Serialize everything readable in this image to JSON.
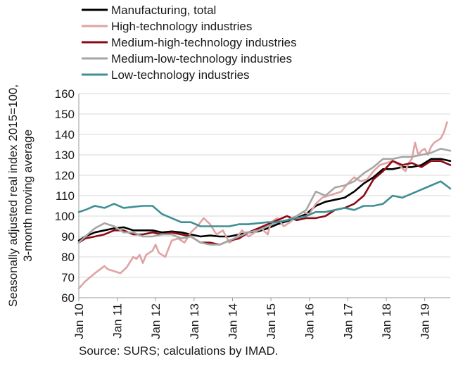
{
  "chart_data": {
    "type": "line",
    "ylabel_lines": [
      "Seasonally adjusted real index 2015=100,",
      "3-month moving average"
    ],
    "ylim": [
      60,
      160
    ],
    "yticks": [
      60,
      70,
      80,
      90,
      100,
      110,
      120,
      130,
      140,
      150,
      160
    ],
    "xlim": [
      "2010-01",
      "2019-09"
    ],
    "xticks": [
      "Jan 10",
      "Jan 11",
      "Jan 12",
      "Jan 13",
      "Jan 14",
      "Jan 15",
      "Jan 16",
      "Jan 17",
      "Jan 18",
      "Jan 19"
    ],
    "grid": "horizontal",
    "legend": "top-left",
    "series": [
      {
        "name": "Manufacturing, total",
        "color": "#000000",
        "points": [
          [
            "2010-01",
            88
          ],
          [
            "2010-03",
            90
          ],
          [
            "2010-06",
            92
          ],
          [
            "2010-09",
            93
          ],
          [
            "2010-12",
            94
          ],
          [
            "2011-03",
            94.5
          ],
          [
            "2011-06",
            93
          ],
          [
            "2011-09",
            93
          ],
          [
            "2011-12",
            93
          ],
          [
            "2012-03",
            92
          ],
          [
            "2012-06",
            92.5
          ],
          [
            "2012-09",
            92
          ],
          [
            "2012-12",
            91
          ],
          [
            "2013-03",
            90
          ],
          [
            "2013-06",
            90.5
          ],
          [
            "2013-09",
            90
          ],
          [
            "2013-12",
            90
          ],
          [
            "2014-03",
            91
          ],
          [
            "2014-06",
            92
          ],
          [
            "2014-09",
            92.5
          ],
          [
            "2014-12",
            94
          ],
          [
            "2015-03",
            96
          ],
          [
            "2015-06",
            97.5
          ],
          [
            "2015-09",
            99
          ],
          [
            "2015-12",
            101
          ],
          [
            "2016-03",
            105
          ],
          [
            "2016-06",
            107
          ],
          [
            "2016-09",
            108
          ],
          [
            "2016-12",
            109
          ],
          [
            "2017-03",
            112
          ],
          [
            "2017-06",
            116
          ],
          [
            "2017-09",
            119
          ],
          [
            "2017-12",
            123
          ],
          [
            "2018-03",
            123
          ],
          [
            "2018-06",
            124
          ],
          [
            "2018-09",
            124
          ],
          [
            "2018-12",
            125
          ],
          [
            "2019-03",
            128
          ],
          [
            "2019-06",
            128
          ],
          [
            "2019-09",
            127
          ]
        ]
      },
      {
        "name": "High-technology industries",
        "color": "#e0a3a3",
        "points": [
          [
            "2010-01",
            64.5
          ],
          [
            "2010-03",
            68
          ],
          [
            "2010-06",
            72
          ],
          [
            "2010-09",
            75.5
          ],
          [
            "2010-10",
            74
          ],
          [
            "2010-12",
            73
          ],
          [
            "2011-02",
            72
          ],
          [
            "2011-04",
            75
          ],
          [
            "2011-06",
            80
          ],
          [
            "2011-07",
            79
          ],
          [
            "2011-08",
            81
          ],
          [
            "2011-09",
            77
          ],
          [
            "2011-10",
            81
          ],
          [
            "2011-12",
            83
          ],
          [
            "2012-01",
            86
          ],
          [
            "2012-02",
            82
          ],
          [
            "2012-04",
            80
          ],
          [
            "2012-06",
            88
          ],
          [
            "2012-08",
            89
          ],
          [
            "2012-10",
            87
          ],
          [
            "2012-12",
            92
          ],
          [
            "2013-02",
            95
          ],
          [
            "2013-04",
            99
          ],
          [
            "2013-06",
            96
          ],
          [
            "2013-08",
            91
          ],
          [
            "2013-10",
            93
          ],
          [
            "2013-12",
            87
          ],
          [
            "2014-02",
            89
          ],
          [
            "2014-04",
            93
          ],
          [
            "2014-06",
            90
          ],
          [
            "2014-08",
            92
          ],
          [
            "2014-10",
            94
          ],
          [
            "2014-12",
            91
          ],
          [
            "2015-01",
            97
          ],
          [
            "2015-03",
            99
          ],
          [
            "2015-05",
            95
          ],
          [
            "2015-07",
            97
          ],
          [
            "2015-09",
            100
          ],
          [
            "2015-11",
            102
          ],
          [
            "2016-01",
            101
          ],
          [
            "2016-03",
            106
          ],
          [
            "2016-05",
            109
          ],
          [
            "2016-07",
            110
          ],
          [
            "2016-09",
            111
          ],
          [
            "2016-11",
            112
          ],
          [
            "2017-01",
            116
          ],
          [
            "2017-03",
            119
          ],
          [
            "2017-05",
            117
          ],
          [
            "2017-07",
            118
          ],
          [
            "2017-09",
            122
          ],
          [
            "2017-11",
            125
          ],
          [
            "2018-01",
            126
          ],
          [
            "2018-03",
            127
          ],
          [
            "2018-05",
            125
          ],
          [
            "2018-07",
            122
          ],
          [
            "2018-08",
            126
          ],
          [
            "2018-09",
            128
          ],
          [
            "2018-10",
            136
          ],
          [
            "2018-11",
            130
          ],
          [
            "2018-12",
            132
          ],
          [
            "2019-01",
            133
          ],
          [
            "2019-02",
            130
          ],
          [
            "2019-03",
            134
          ],
          [
            "2019-04",
            136
          ],
          [
            "2019-05",
            137
          ],
          [
            "2019-06",
            138
          ],
          [
            "2019-07",
            141
          ],
          [
            "2019-08",
            146
          ]
        ]
      },
      {
        "name": "Medium-high-technology industries",
        "color": "#8b0a16",
        "points": [
          [
            "2010-01",
            87
          ],
          [
            "2010-03",
            89
          ],
          [
            "2010-06",
            90
          ],
          [
            "2010-09",
            91
          ],
          [
            "2010-12",
            93
          ],
          [
            "2011-03",
            93
          ],
          [
            "2011-06",
            91
          ],
          [
            "2011-09",
            91
          ],
          [
            "2011-12",
            92
          ],
          [
            "2012-03",
            91
          ],
          [
            "2012-06",
            92
          ],
          [
            "2012-09",
            91
          ],
          [
            "2012-12",
            90
          ],
          [
            "2013-03",
            87
          ],
          [
            "2013-06",
            87
          ],
          [
            "2013-09",
            86
          ],
          [
            "2013-12",
            88
          ],
          [
            "2014-03",
            89
          ],
          [
            "2014-06",
            92
          ],
          [
            "2014-09",
            94
          ],
          [
            "2014-12",
            96
          ],
          [
            "2015-03",
            98
          ],
          [
            "2015-06",
            100
          ],
          [
            "2015-09",
            98
          ],
          [
            "2015-12",
            99
          ],
          [
            "2016-03",
            99
          ],
          [
            "2016-06",
            100
          ],
          [
            "2016-09",
            103
          ],
          [
            "2016-12",
            104
          ],
          [
            "2017-03",
            106
          ],
          [
            "2017-06",
            110
          ],
          [
            "2017-09",
            118
          ],
          [
            "2017-12",
            122
          ],
          [
            "2018-03",
            127
          ],
          [
            "2018-06",
            125
          ],
          [
            "2018-09",
            126
          ],
          [
            "2018-12",
            124
          ],
          [
            "2019-03",
            127
          ],
          [
            "2019-06",
            127
          ],
          [
            "2019-09",
            125
          ]
        ]
      },
      {
        "name": "Medium-low-technology industries",
        "color": "#a6a6a6",
        "points": [
          [
            "2010-01",
            87
          ],
          [
            "2010-03",
            90
          ],
          [
            "2010-06",
            94
          ],
          [
            "2010-09",
            96.5
          ],
          [
            "2010-12",
            95
          ],
          [
            "2011-03",
            92
          ],
          [
            "2011-06",
            92
          ],
          [
            "2011-09",
            90
          ],
          [
            "2011-12",
            90
          ],
          [
            "2012-03",
            91
          ],
          [
            "2012-06",
            91
          ],
          [
            "2012-09",
            89
          ],
          [
            "2012-12",
            90
          ],
          [
            "2013-03",
            87
          ],
          [
            "2013-06",
            86
          ],
          [
            "2013-09",
            86
          ],
          [
            "2013-12",
            88
          ],
          [
            "2014-03",
            90
          ],
          [
            "2014-06",
            92
          ],
          [
            "2014-09",
            93
          ],
          [
            "2014-12",
            95
          ],
          [
            "2015-03",
            97
          ],
          [
            "2015-06",
            98
          ],
          [
            "2015-09",
            100
          ],
          [
            "2015-12",
            103
          ],
          [
            "2016-03",
            112
          ],
          [
            "2016-06",
            110
          ],
          [
            "2016-09",
            114
          ],
          [
            "2016-12",
            115
          ],
          [
            "2017-03",
            117
          ],
          [
            "2017-06",
            121
          ],
          [
            "2017-09",
            124
          ],
          [
            "2017-12",
            128
          ],
          [
            "2018-03",
            128
          ],
          [
            "2018-06",
            129
          ],
          [
            "2018-09",
            129
          ],
          [
            "2018-12",
            130
          ],
          [
            "2019-03",
            131
          ],
          [
            "2019-06",
            133
          ],
          [
            "2019-09",
            132
          ]
        ]
      },
      {
        "name": "Low-technology industries",
        "color": "#3f8f95",
        "points": [
          [
            "2010-01",
            102
          ],
          [
            "2010-03",
            103
          ],
          [
            "2010-06",
            105
          ],
          [
            "2010-09",
            104
          ],
          [
            "2010-12",
            106
          ],
          [
            "2011-03",
            104
          ],
          [
            "2011-06",
            104.5
          ],
          [
            "2011-09",
            105
          ],
          [
            "2011-12",
            105
          ],
          [
            "2012-03",
            101
          ],
          [
            "2012-06",
            99
          ],
          [
            "2012-09",
            97
          ],
          [
            "2012-12",
            97
          ],
          [
            "2013-03",
            95
          ],
          [
            "2013-06",
            95
          ],
          [
            "2013-09",
            95
          ],
          [
            "2013-12",
            95
          ],
          [
            "2014-03",
            96
          ],
          [
            "2014-06",
            96
          ],
          [
            "2014-09",
            96.5
          ],
          [
            "2014-12",
            97
          ],
          [
            "2015-03",
            97
          ],
          [
            "2015-06",
            98
          ],
          [
            "2015-09",
            99
          ],
          [
            "2015-12",
            100
          ],
          [
            "2016-03",
            102
          ],
          [
            "2016-06",
            102
          ],
          [
            "2016-09",
            103
          ],
          [
            "2016-12",
            104
          ],
          [
            "2017-03",
            103
          ],
          [
            "2017-06",
            105
          ],
          [
            "2017-09",
            105
          ],
          [
            "2017-12",
            106
          ],
          [
            "2018-03",
            110
          ],
          [
            "2018-06",
            109
          ],
          [
            "2018-09",
            111
          ],
          [
            "2018-12",
            113
          ],
          [
            "2019-03",
            115
          ],
          [
            "2019-06",
            117
          ],
          [
            "2019-09",
            113.5
          ]
        ]
      }
    ]
  },
  "source": "Source: SURS; calculations by IMAD."
}
